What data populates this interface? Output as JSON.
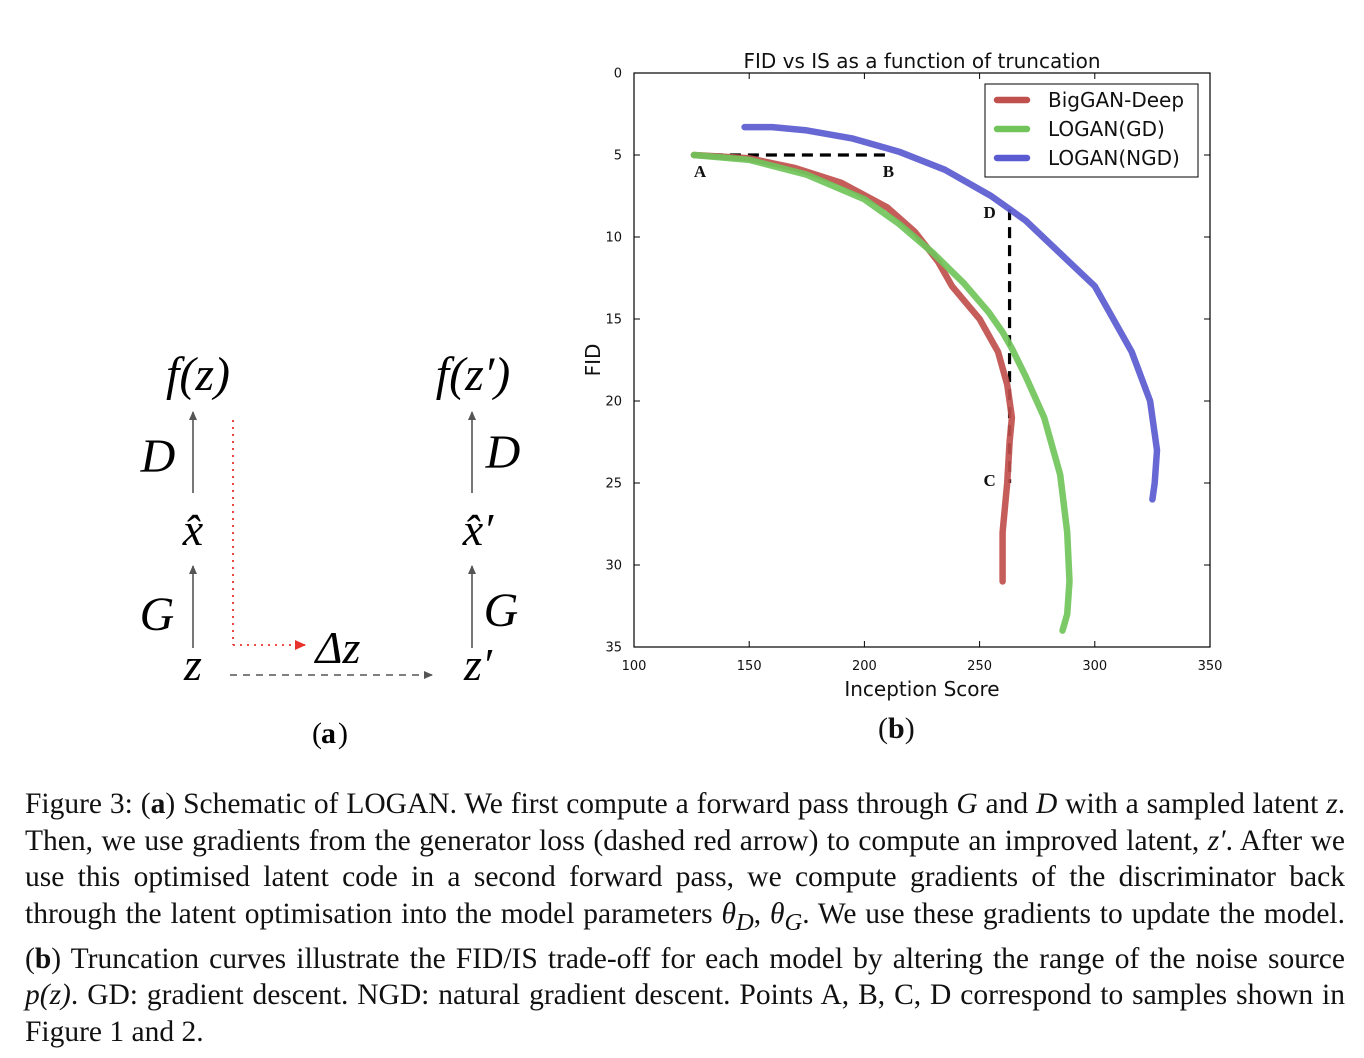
{
  "diagram_a": {
    "top_left": "f(z)",
    "top_right": "f(z′)",
    "label_D": "D",
    "label_G": "G",
    "xhat": "x̂",
    "xhat_prime": "x̂′",
    "z": "z",
    "z_prime": "z′",
    "delta_z": "Δz",
    "colors": {
      "arrow": "#555555",
      "gradient_arrow": "#e8332c"
    }
  },
  "sublabels": {
    "a": "a",
    "b": "b"
  },
  "chart_data": {
    "type": "line",
    "title": "FID vs IS as a function of truncation",
    "xlabel": "Inception Score",
    "ylabel": "FID",
    "xlim": [
      100,
      350
    ],
    "ylim": [
      35,
      0
    ],
    "y_inverted": true,
    "xticks": [
      100,
      150,
      200,
      250,
      300,
      350
    ],
    "yticks": [
      0,
      5,
      10,
      15,
      20,
      25,
      30,
      35
    ],
    "grid": false,
    "legend_position": "top-right",
    "series": [
      {
        "name": "BigGAN-Deep",
        "color": "#c0504d",
        "x": [
          126,
          150,
          170,
          190,
          210,
          222,
          232,
          238,
          250,
          258,
          262,
          264,
          263,
          262,
          260,
          260,
          260
        ],
        "y": [
          5,
          5.2,
          5.8,
          6.7,
          8.2,
          9.7,
          11.5,
          13,
          15,
          17,
          19,
          21,
          22.5,
          25,
          28,
          30,
          31
        ]
      },
      {
        "name": "LOGAN(GD)",
        "color": "#70c45a",
        "x": [
          126,
          150,
          175,
          200,
          215,
          230,
          243,
          254,
          260,
          264,
          270,
          278,
          285,
          288,
          289,
          288,
          286
        ],
        "y": [
          5,
          5.3,
          6.2,
          7.7,
          9.2,
          11,
          12.8,
          14.6,
          15.8,
          16.8,
          18.5,
          21,
          24.5,
          28,
          31,
          33,
          34
        ]
      },
      {
        "name": "LOGAN(NGD)",
        "color": "#5b5bd1",
        "x": [
          148,
          160,
          175,
          195,
          215,
          235,
          255,
          270,
          285,
          300,
          316,
          324,
          327,
          326,
          325
        ],
        "y": [
          3.3,
          3.3,
          3.5,
          4,
          4.8,
          5.9,
          7.5,
          9,
          11,
          13,
          17,
          20,
          23,
          25,
          26
        ]
      }
    ],
    "annotations": [
      {
        "label": "A",
        "x": 126,
        "y": 5
      },
      {
        "label": "B",
        "x": 211,
        "y": 5
      },
      {
        "label": "C",
        "x": 263,
        "y": 25
      },
      {
        "label": "D",
        "x": 263,
        "y": 8.3
      }
    ],
    "guides": [
      {
        "from": [
          126,
          5
        ],
        "to": [
          211,
          5
        ]
      },
      {
        "from": [
          263,
          8.3
        ],
        "to": [
          263,
          25
        ]
      }
    ]
  },
  "caption": {
    "label": "Figure 3:",
    "a_tag": "a",
    "part_a_1": "Schematic of LOGAN. We first compute a forward pass through",
    "G": "G",
    "and": "and",
    "D": "D",
    "part_a_2": "with a sampled latent",
    "z": "z",
    "part_a_3": ". Then, we use gradients from the generator loss (dashed red arrow) to compute an improved latent,",
    "z_prime": "z′",
    "part_a_4": ". After we use this optimised latent code in a second forward pass, we compute gradients of the discriminator back through the latent optimisation into the model parameters",
    "theta_D": "θ",
    "sub_D": "D",
    "comma": ",",
    "theta_G": "θ",
    "sub_G": "G",
    "part_a_5": ". We use these gradients to update the model.",
    "b_tag": "b",
    "part_b_1": "Truncation curves illustrate the FID/IS trade-off for each model by altering the range of the noise source",
    "pz": "p(z)",
    "part_b_2": ". GD: gradient descent. NGD: natural gradient descent. Points A, B, C, D correspond to samples shown in Figure 1 and 2."
  }
}
